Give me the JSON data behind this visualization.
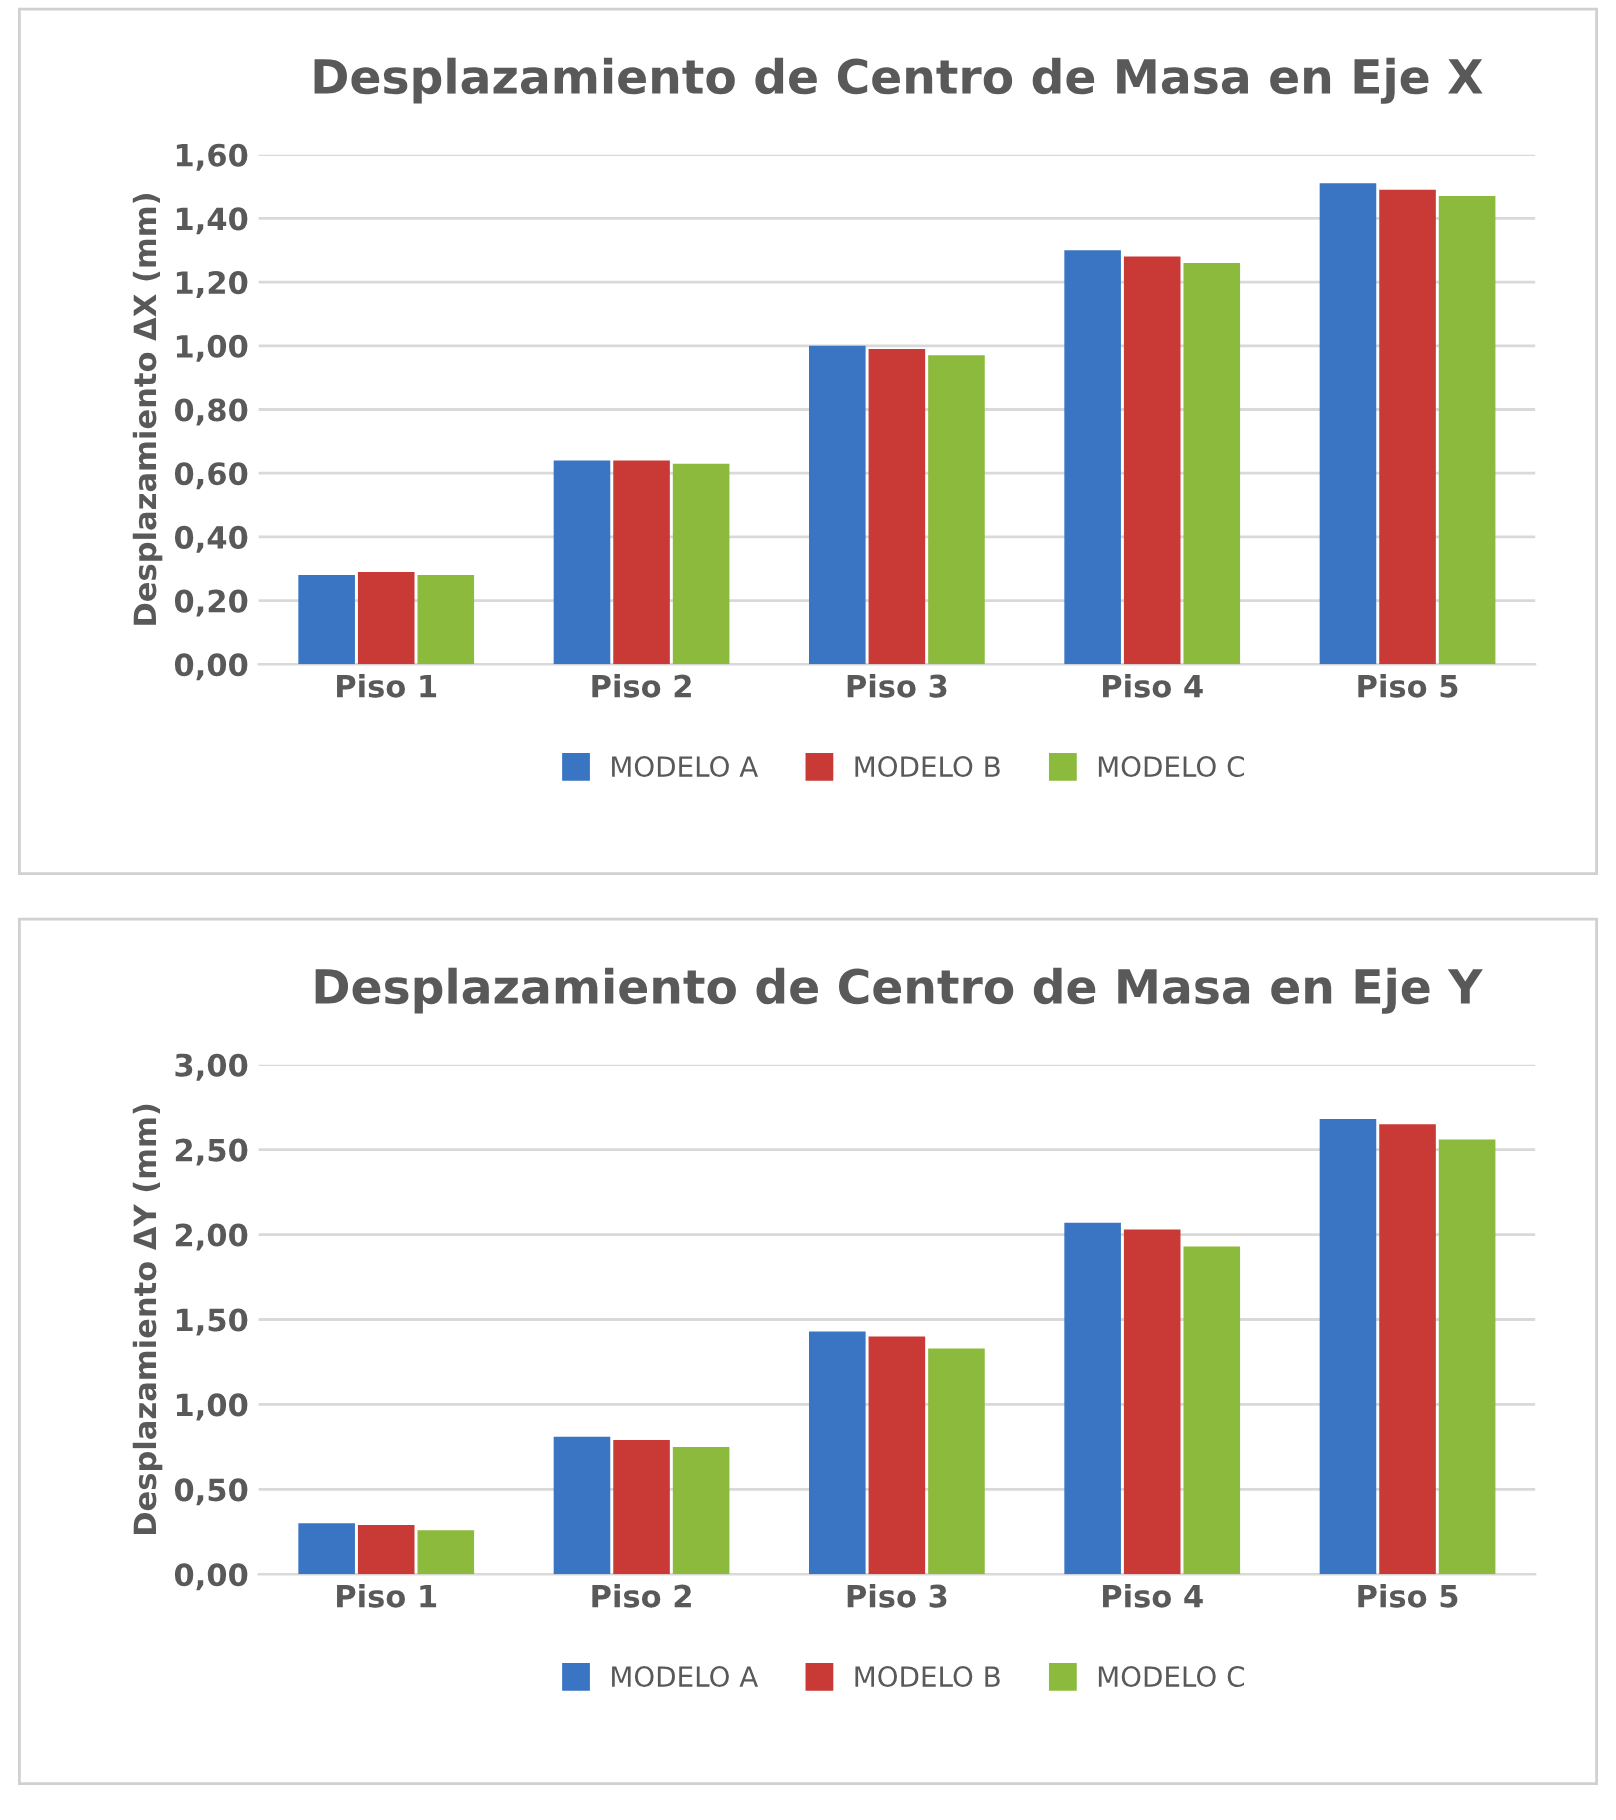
{
  "chart_data": [
    {
      "type": "bar",
      "title": "Desplazamiento de Centro de Masa en Eje X",
      "ylabel": "Desplazamiento ΔX (mm)",
      "categories": [
        "Piso 1",
        "Piso 2",
        "Piso 3",
        "Piso 4",
        "Piso 5"
      ],
      "series": [
        {
          "name": "MODELO A",
          "color": "#3a75c4",
          "values": [
            0.28,
            0.64,
            1.0,
            1.3,
            1.51
          ]
        },
        {
          "name": "MODELO B",
          "color": "#c93a36",
          "values": [
            0.29,
            0.64,
            0.99,
            1.28,
            1.49
          ]
        },
        {
          "name": "MODELO C",
          "color": "#8cba3d",
          "values": [
            0.28,
            0.63,
            0.97,
            1.26,
            1.47
          ]
        }
      ],
      "ylim": [
        0,
        1.6
      ],
      "yticks": [
        {
          "value": 0,
          "label": "0,00"
        },
        {
          "value": 0.2,
          "label": "0,20"
        },
        {
          "value": 0.4,
          "label": "0,40"
        },
        {
          "value": 0.6,
          "label": "0,60"
        },
        {
          "value": 0.8,
          "label": "0,80"
        },
        {
          "value": 1.0,
          "label": "1,00"
        },
        {
          "value": 1.2,
          "label": "1,20"
        },
        {
          "value": 1.4,
          "label": "1,40"
        },
        {
          "value": 1.6,
          "label": "1,60"
        }
      ],
      "grid": "y",
      "legend": "bottom"
    },
    {
      "type": "bar",
      "title": "Desplazamiento de Centro de Masa en Eje Y",
      "ylabel": "Desplazamiento ΔY (mm)",
      "categories": [
        "Piso 1",
        "Piso 2",
        "Piso 3",
        "Piso 4",
        "Piso 5"
      ],
      "series": [
        {
          "name": "MODELO A",
          "color": "#3a75c4",
          "values": [
            0.3,
            0.81,
            1.43,
            2.07,
            2.68
          ]
        },
        {
          "name": "MODELO B",
          "color": "#c93a36",
          "values": [
            0.29,
            0.79,
            1.4,
            2.03,
            2.65
          ]
        },
        {
          "name": "MODELO C",
          "color": "#8cba3d",
          "values": [
            0.26,
            0.75,
            1.33,
            1.93,
            2.56
          ]
        }
      ],
      "ylim": [
        0,
        3.0
      ],
      "yticks": [
        {
          "value": 0,
          "label": "0,00"
        },
        {
          "value": 0.5,
          "label": "0,50"
        },
        {
          "value": 1.0,
          "label": "1,00"
        },
        {
          "value": 1.5,
          "label": "1,50"
        },
        {
          "value": 2.0,
          "label": "2,00"
        },
        {
          "value": 2.5,
          "label": "2,50"
        },
        {
          "value": 3.0,
          "label": "3,00"
        }
      ],
      "grid": "y",
      "legend": "bottom"
    }
  ]
}
